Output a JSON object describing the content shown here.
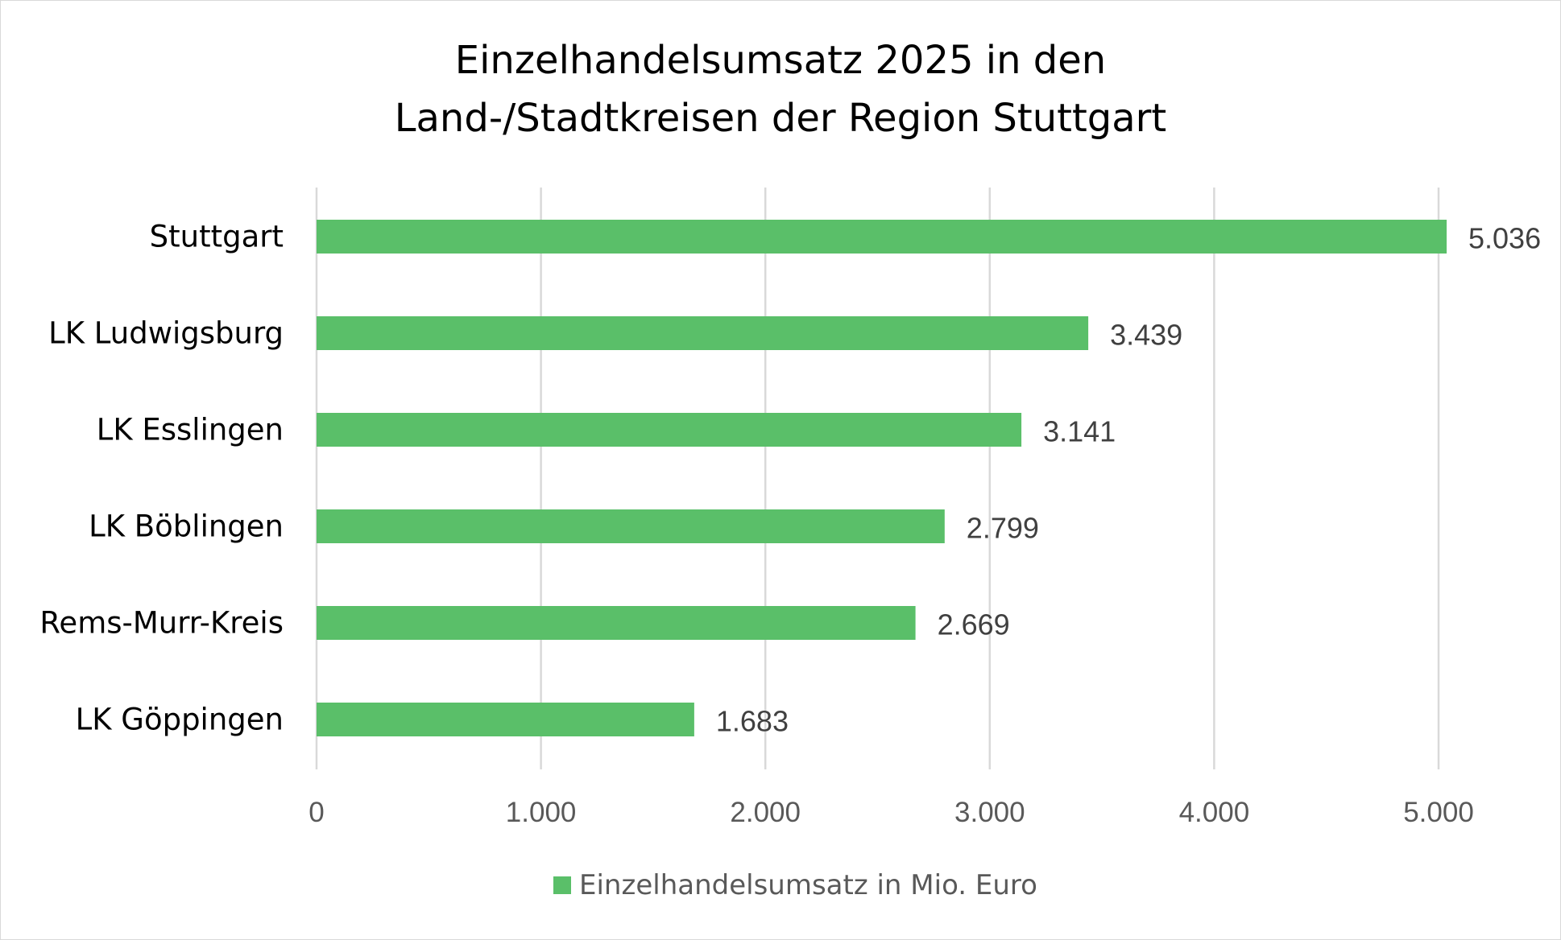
{
  "chart_data": {
    "type": "bar",
    "orientation": "horizontal",
    "title_lines": [
      "Einzelhandelsumsatz 2025 in den",
      "Land-/Stadtkreisen der Region Stuttgart"
    ],
    "categories": [
      "Stuttgart",
      "LK Ludwigsburg",
      "LK Esslingen",
      "LK Böblingen",
      "Rems-Murr-Kreis",
      "LK Göppingen"
    ],
    "series": [
      {
        "name": "Einzelhandelsumsatz in Mio. Euro",
        "color": "#5abf69",
        "values": [
          5036,
          3439,
          3141,
          2799,
          2669,
          1683
        ],
        "value_labels": [
          "5.036",
          "3.439",
          "3.141",
          "2.799",
          "2.669",
          "1.683"
        ]
      }
    ],
    "x_ticks": [
      0,
      1000,
      2000,
      3000,
      4000,
      5000
    ],
    "x_tick_labels": [
      "0",
      "1.000",
      "2.000",
      "3.000",
      "4.000",
      "5.000"
    ],
    "xlim": [
      0,
      5000
    ],
    "grid": "vertical",
    "grid_color": "#d9d9d9",
    "legend_position": "bottom"
  }
}
